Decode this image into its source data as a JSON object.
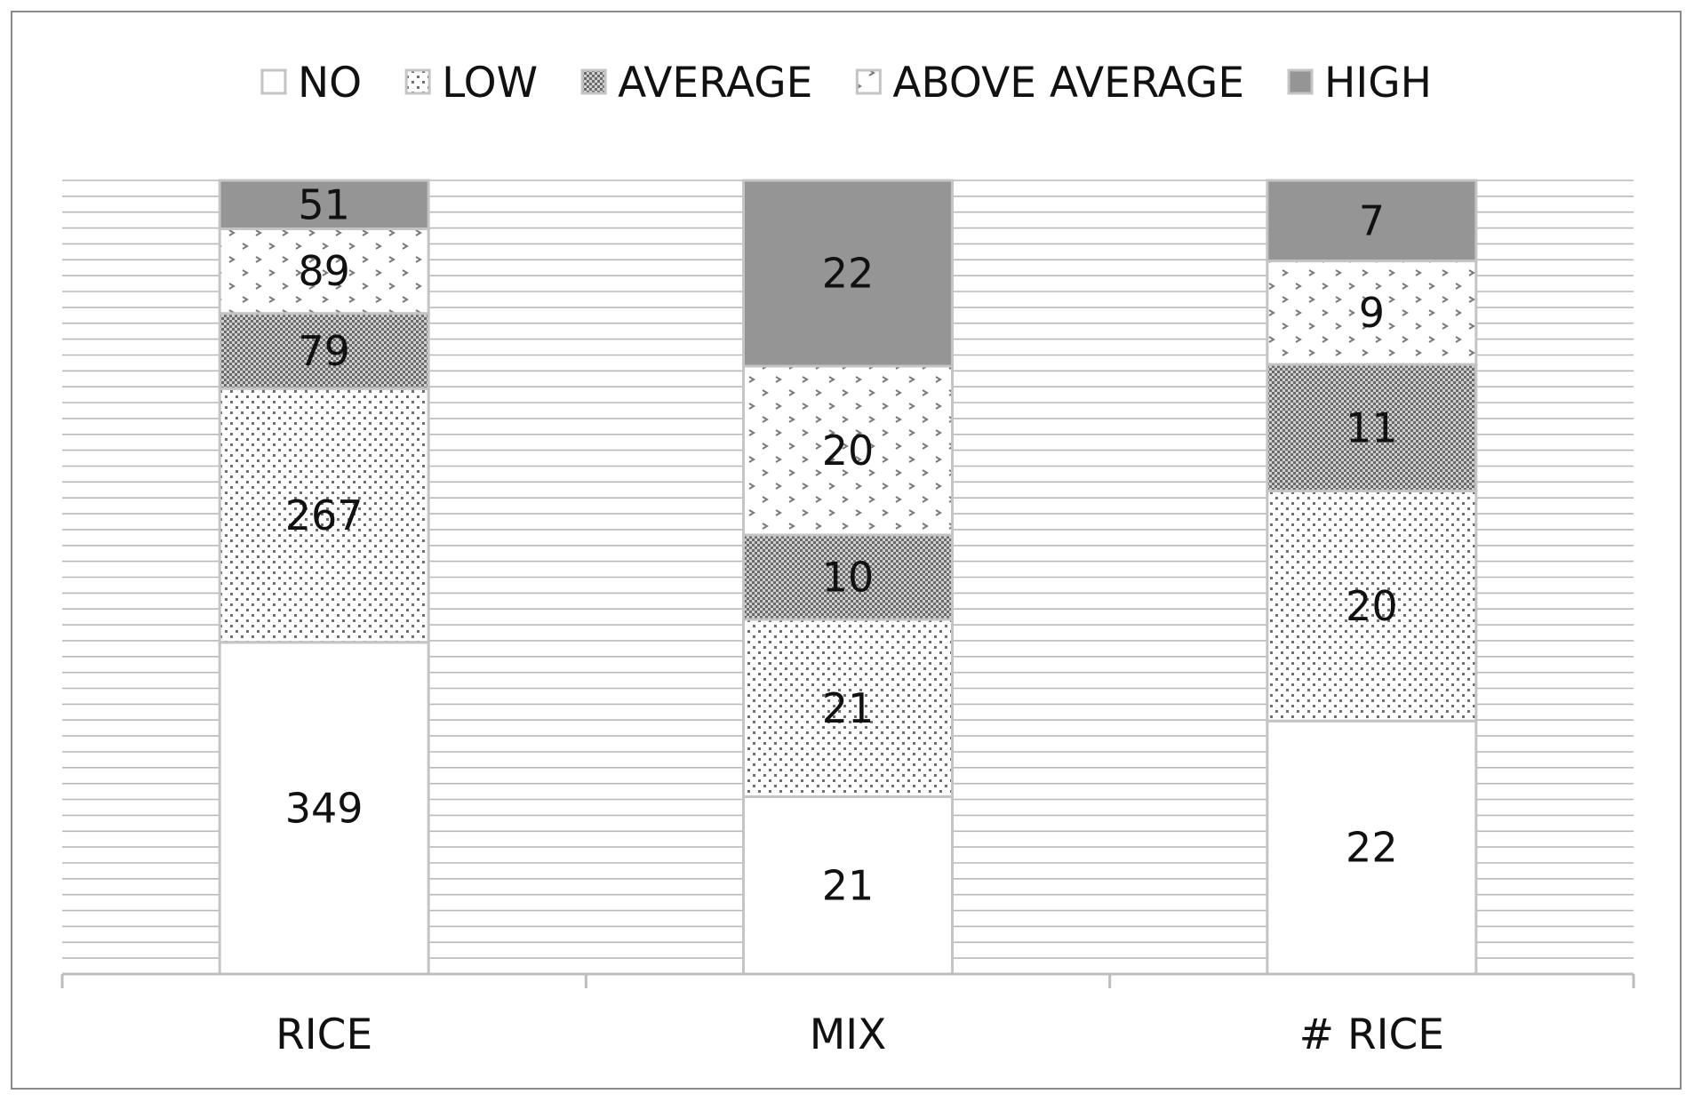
{
  "chart_data": {
    "type": "bar",
    "stacked": true,
    "normalized_percent": true,
    "title": "",
    "xlabel": "",
    "ylabel": "",
    "categories": [
      "RICE",
      "MIX",
      "# RICE"
    ],
    "series": [
      {
        "name": "NO",
        "values": [
          349,
          21,
          22
        ],
        "color": "#ffffff",
        "pattern": "none"
      },
      {
        "name": "LOW",
        "values": [
          267,
          21,
          20
        ],
        "color": "#ffffff",
        "pattern": "fine-dots"
      },
      {
        "name": "AVERAGE",
        "values": [
          79,
          10,
          11
        ],
        "color": "#a8a8a8",
        "pattern": "checker"
      },
      {
        "name": "ABOVE AVERAGE",
        "values": [
          89,
          20,
          9
        ],
        "color": "#ffffff",
        "pattern": "sparse-marks"
      },
      {
        "name": "HIGH",
        "values": [
          51,
          22,
          7
        ],
        "color": "#959595",
        "pattern": "solid"
      }
    ],
    "legend": {
      "position": "top"
    },
    "grid": {
      "horizontal": true,
      "vertical": false,
      "color": "#b9b9b9"
    },
    "axis_color": "#bdbdbd"
  }
}
